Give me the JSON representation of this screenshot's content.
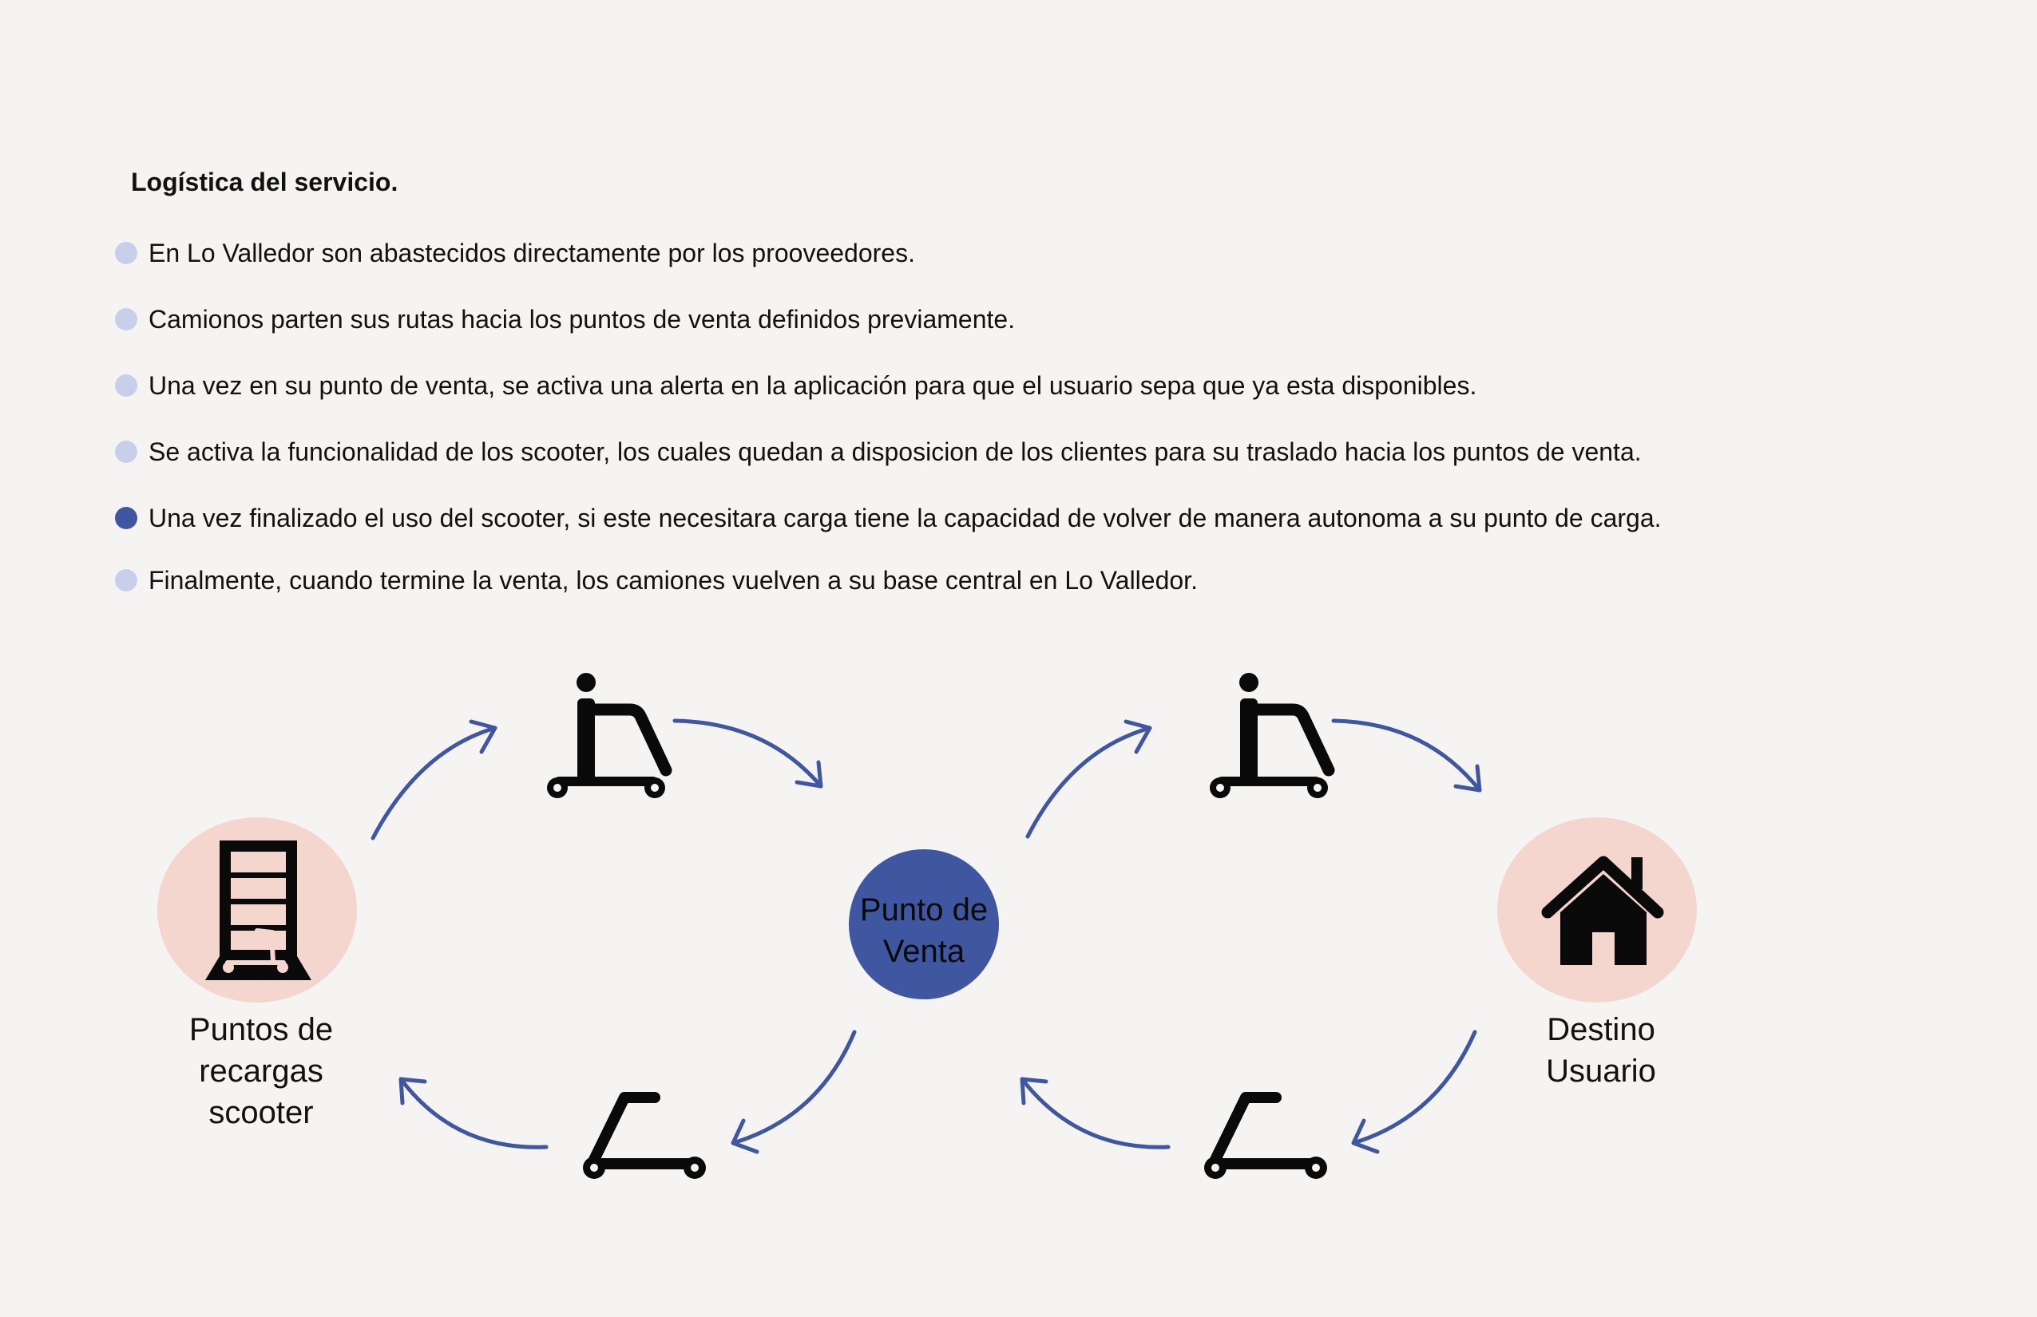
{
  "title": "Logística del servicio.",
  "colors": {
    "background": "#f6f4f2",
    "accent": "#3f56a1",
    "dot_light": "#c8cfea",
    "circle_pink": "#f4d6cf",
    "icon": "#0a0a0a"
  },
  "bullets": [
    {
      "text": "En Lo Valledor son abastecidos directamente por los prooveedores.",
      "highlight": false
    },
    {
      "text": "Camionos parten sus rutas hacia los puntos de venta definidos previamente.",
      "highlight": false
    },
    {
      "text": "Una vez en su punto de venta, se activa una alerta en la aplicación para que el usuario sepa que ya esta disponibles.",
      "highlight": false
    },
    {
      "text": "Se activa la funcionalidad de los scooter, los cuales quedan a disposicion de los clientes para su traslado hacia los puntos de venta.",
      "highlight": false
    },
    {
      "text": "Una vez finalizado el uso del scooter, si este necesitara carga tiene la capacidad de volver de manera autonoma a su punto de carga.",
      "highlight": true
    },
    {
      "text": "Finalmente, cuando termine la venta, los camiones vuelven a su base central en Lo Valledor.",
      "highlight": false
    }
  ],
  "diagram": {
    "nodes": {
      "charging": {
        "label": "Puntos de\nrecargas\nscooter",
        "icon": "charging-station-scooter-icon"
      },
      "sale": {
        "label": "Punto de\nVenta"
      },
      "destination": {
        "label": "Destino\nUsuario",
        "icon": "house-icon"
      }
    },
    "icons": {
      "riding": "person-riding-scooter-icon",
      "empty": "empty-scooter-icon",
      "arrow": "curved-arrow-icon"
    }
  }
}
